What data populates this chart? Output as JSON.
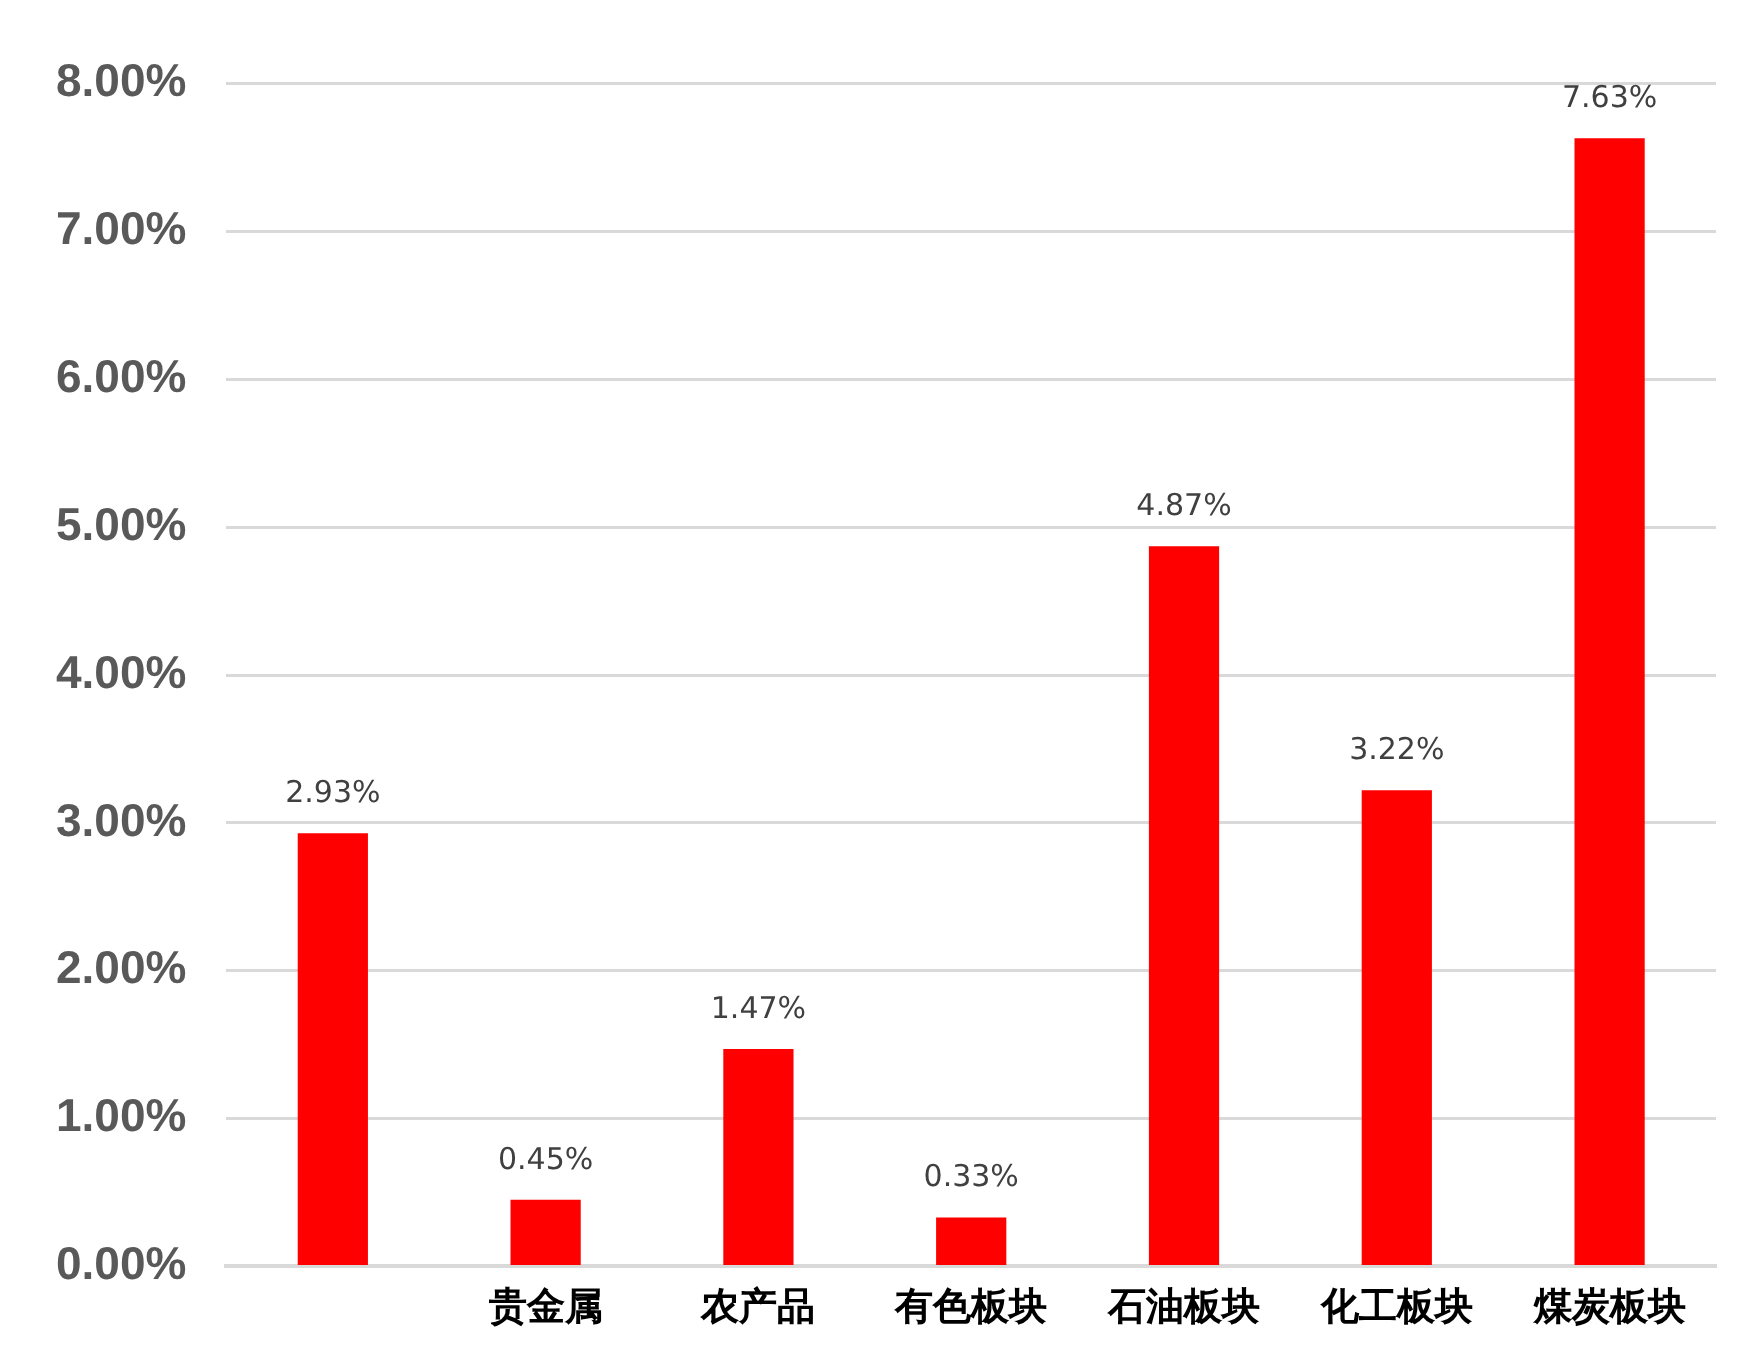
{
  "chart_data": {
    "type": "bar",
    "categories": [
      null,
      "贵金属",
      "农产品",
      "有色板块",
      "石油板块",
      "化工板块",
      "煤炭板块"
    ],
    "values": [
      2.93,
      0.45,
      1.47,
      0.33,
      4.87,
      3.22,
      7.63
    ],
    "value_labels": [
      "2.93%",
      "0.45%",
      "1.47%",
      "0.33%",
      "4.87%",
      "3.22%",
      "7.63%"
    ],
    "color": "#ff0000",
    "ylim": [
      0,
      8
    ],
    "yticks": [
      {
        "value": 0,
        "label": "0.00%"
      },
      {
        "value": 1,
        "label": "1.00%"
      },
      {
        "value": 2,
        "label": "2.00%"
      },
      {
        "value": 3,
        "label": "3.00%"
      },
      {
        "value": 4,
        "label": "4.00%"
      },
      {
        "value": 5,
        "label": "5.00%"
      },
      {
        "value": 6,
        "label": "6.00%"
      },
      {
        "value": 7,
        "label": "7.00%"
      },
      {
        "value": 8,
        "label": "8.00%"
      }
    ],
    "grid": "y",
    "legend": false
  }
}
